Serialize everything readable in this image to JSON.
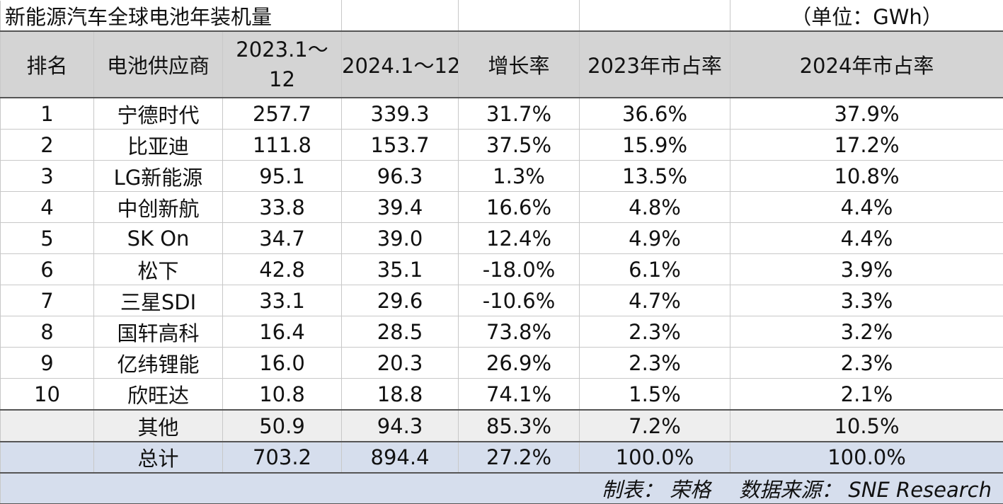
{
  "title": "新能源汽车全球电池年装机量",
  "unit": "（单位：GWh）",
  "headers": [
    "排名",
    "电池供应商",
    "2023.1～12",
    "2024.1～12",
    "增长率",
    "2023年市占率",
    "2024年市占率"
  ],
  "rows": [
    {
      "rank": "1",
      "supplier": "宁德时代",
      "v2023": "257.7",
      "v2024": "339.3",
      "growth": "31.7%",
      "share2023": "36.6%",
      "share2024": "37.9%"
    },
    {
      "rank": "2",
      "supplier": "比亚迪",
      "v2023": "111.8",
      "v2024": "153.7",
      "growth": "37.5%",
      "share2023": "15.9%",
      "share2024": "17.2%"
    },
    {
      "rank": "3",
      "supplier": "LG新能源",
      "v2023": "95.1",
      "v2024": "96.3",
      "growth": "1.3%",
      "share2023": "13.5%",
      "share2024": "10.8%"
    },
    {
      "rank": "4",
      "supplier": "中创新航",
      "v2023": "33.8",
      "v2024": "39.4",
      "growth": "16.6%",
      "share2023": "4.8%",
      "share2024": "4.4%"
    },
    {
      "rank": "5",
      "supplier": "SK On",
      "v2023": "34.7",
      "v2024": "39.0",
      "growth": "12.4%",
      "share2023": "4.9%",
      "share2024": "4.4%"
    },
    {
      "rank": "6",
      "supplier": "松下",
      "v2023": "42.8",
      "v2024": "35.1",
      "growth": "-18.0%",
      "share2023": "6.1%",
      "share2024": "3.9%"
    },
    {
      "rank": "7",
      "supplier": "三星SDI",
      "v2023": "33.1",
      "v2024": "29.6",
      "growth": "-10.6%",
      "share2023": "4.7%",
      "share2024": "3.3%"
    },
    {
      "rank": "8",
      "supplier": "国轩高科",
      "v2023": "16.4",
      "v2024": "28.5",
      "growth": "73.8%",
      "share2023": "2.3%",
      "share2024": "3.2%"
    },
    {
      "rank": "9",
      "supplier": "亿纬锂能",
      "v2023": "16.0",
      "v2024": "20.3",
      "growth": "26.9%",
      "share2023": "2.3%",
      "share2024": "2.3%"
    },
    {
      "rank": "10",
      "supplier": "欣旺达",
      "v2023": "10.8",
      "v2024": "18.8",
      "growth": "74.1%",
      "share2023": "1.5%",
      "share2024": "2.1%"
    }
  ],
  "other": {
    "rank": "",
    "supplier": "其他",
    "v2023": "50.9",
    "v2024": "94.3",
    "growth": "85.3%",
    "share2023": "7.2%",
    "share2024": "10.5%"
  },
  "total": {
    "rank": "",
    "supplier": "总计",
    "v2023": "703.2",
    "v2024": "894.4",
    "growth": "27.2%",
    "share2023": "100.0%",
    "share2024": "100.0%"
  },
  "footer": {
    "maker": "制表： 荣格",
    "source": "数据来源： SNE Research"
  },
  "colors": {
    "header_bg": "#d4d4d4",
    "other_bg": "#eeeeee",
    "total_bg": "#d6deed"
  }
}
